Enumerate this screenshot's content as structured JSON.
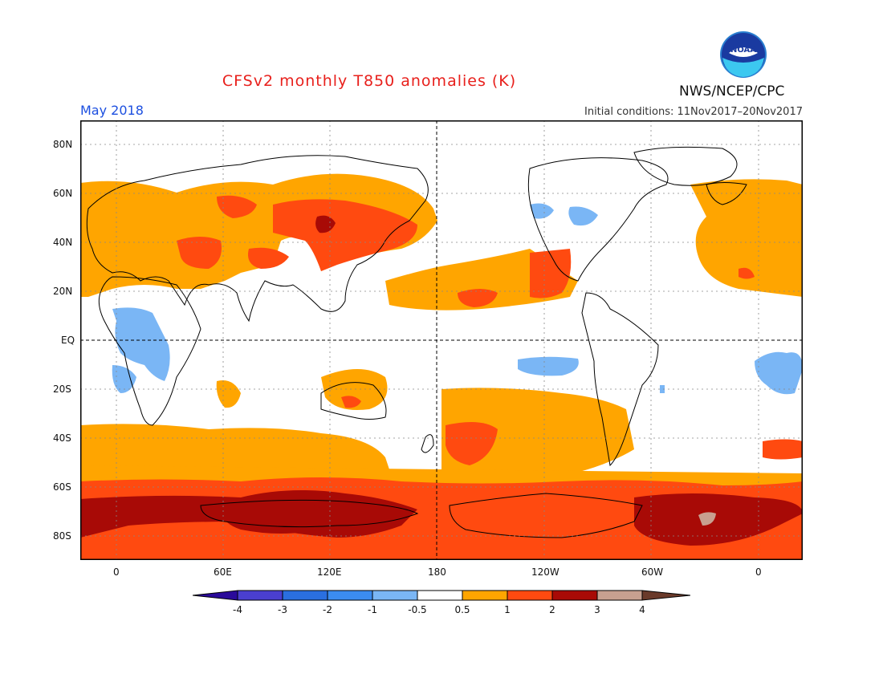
{
  "header": {
    "title": "CFSv2 monthly T850 anomalies (K)",
    "month": "May 2018",
    "initial_conditions": "Initial conditions: 11Nov2017–20Nov2017",
    "org": "NWS/NCEP/CPC",
    "logo_text": "NOAA"
  },
  "axes": {
    "lat_labels": [
      "80N",
      "60N",
      "40N",
      "20N",
      "EQ",
      "20S",
      "40S",
      "60S",
      "80S"
    ],
    "lon_labels": [
      "0",
      "60E",
      "120E",
      "180",
      "120W",
      "60W",
      "0"
    ]
  },
  "legend": {
    "ticks": [
      "-4",
      "-3",
      "-2",
      "-1",
      "-0.5",
      "0.5",
      "1",
      "2",
      "3",
      "4"
    ],
    "colors": [
      "#2a0a9a",
      "#4a3fd0",
      "#2a6fe0",
      "#3b8cf0",
      "#7ab6f5",
      "#ffffff",
      "#ffa500",
      "#ff4a10",
      "#a80a06",
      "#c8a090",
      "#6a3a2a"
    ]
  },
  "colors": {
    "title": "#e8201c",
    "month": "#1c4fe0",
    "orange": "#ffa500",
    "red": "#ff4a10",
    "dark_red": "#a80a06",
    "light_blue": "#7ab6f5"
  }
}
